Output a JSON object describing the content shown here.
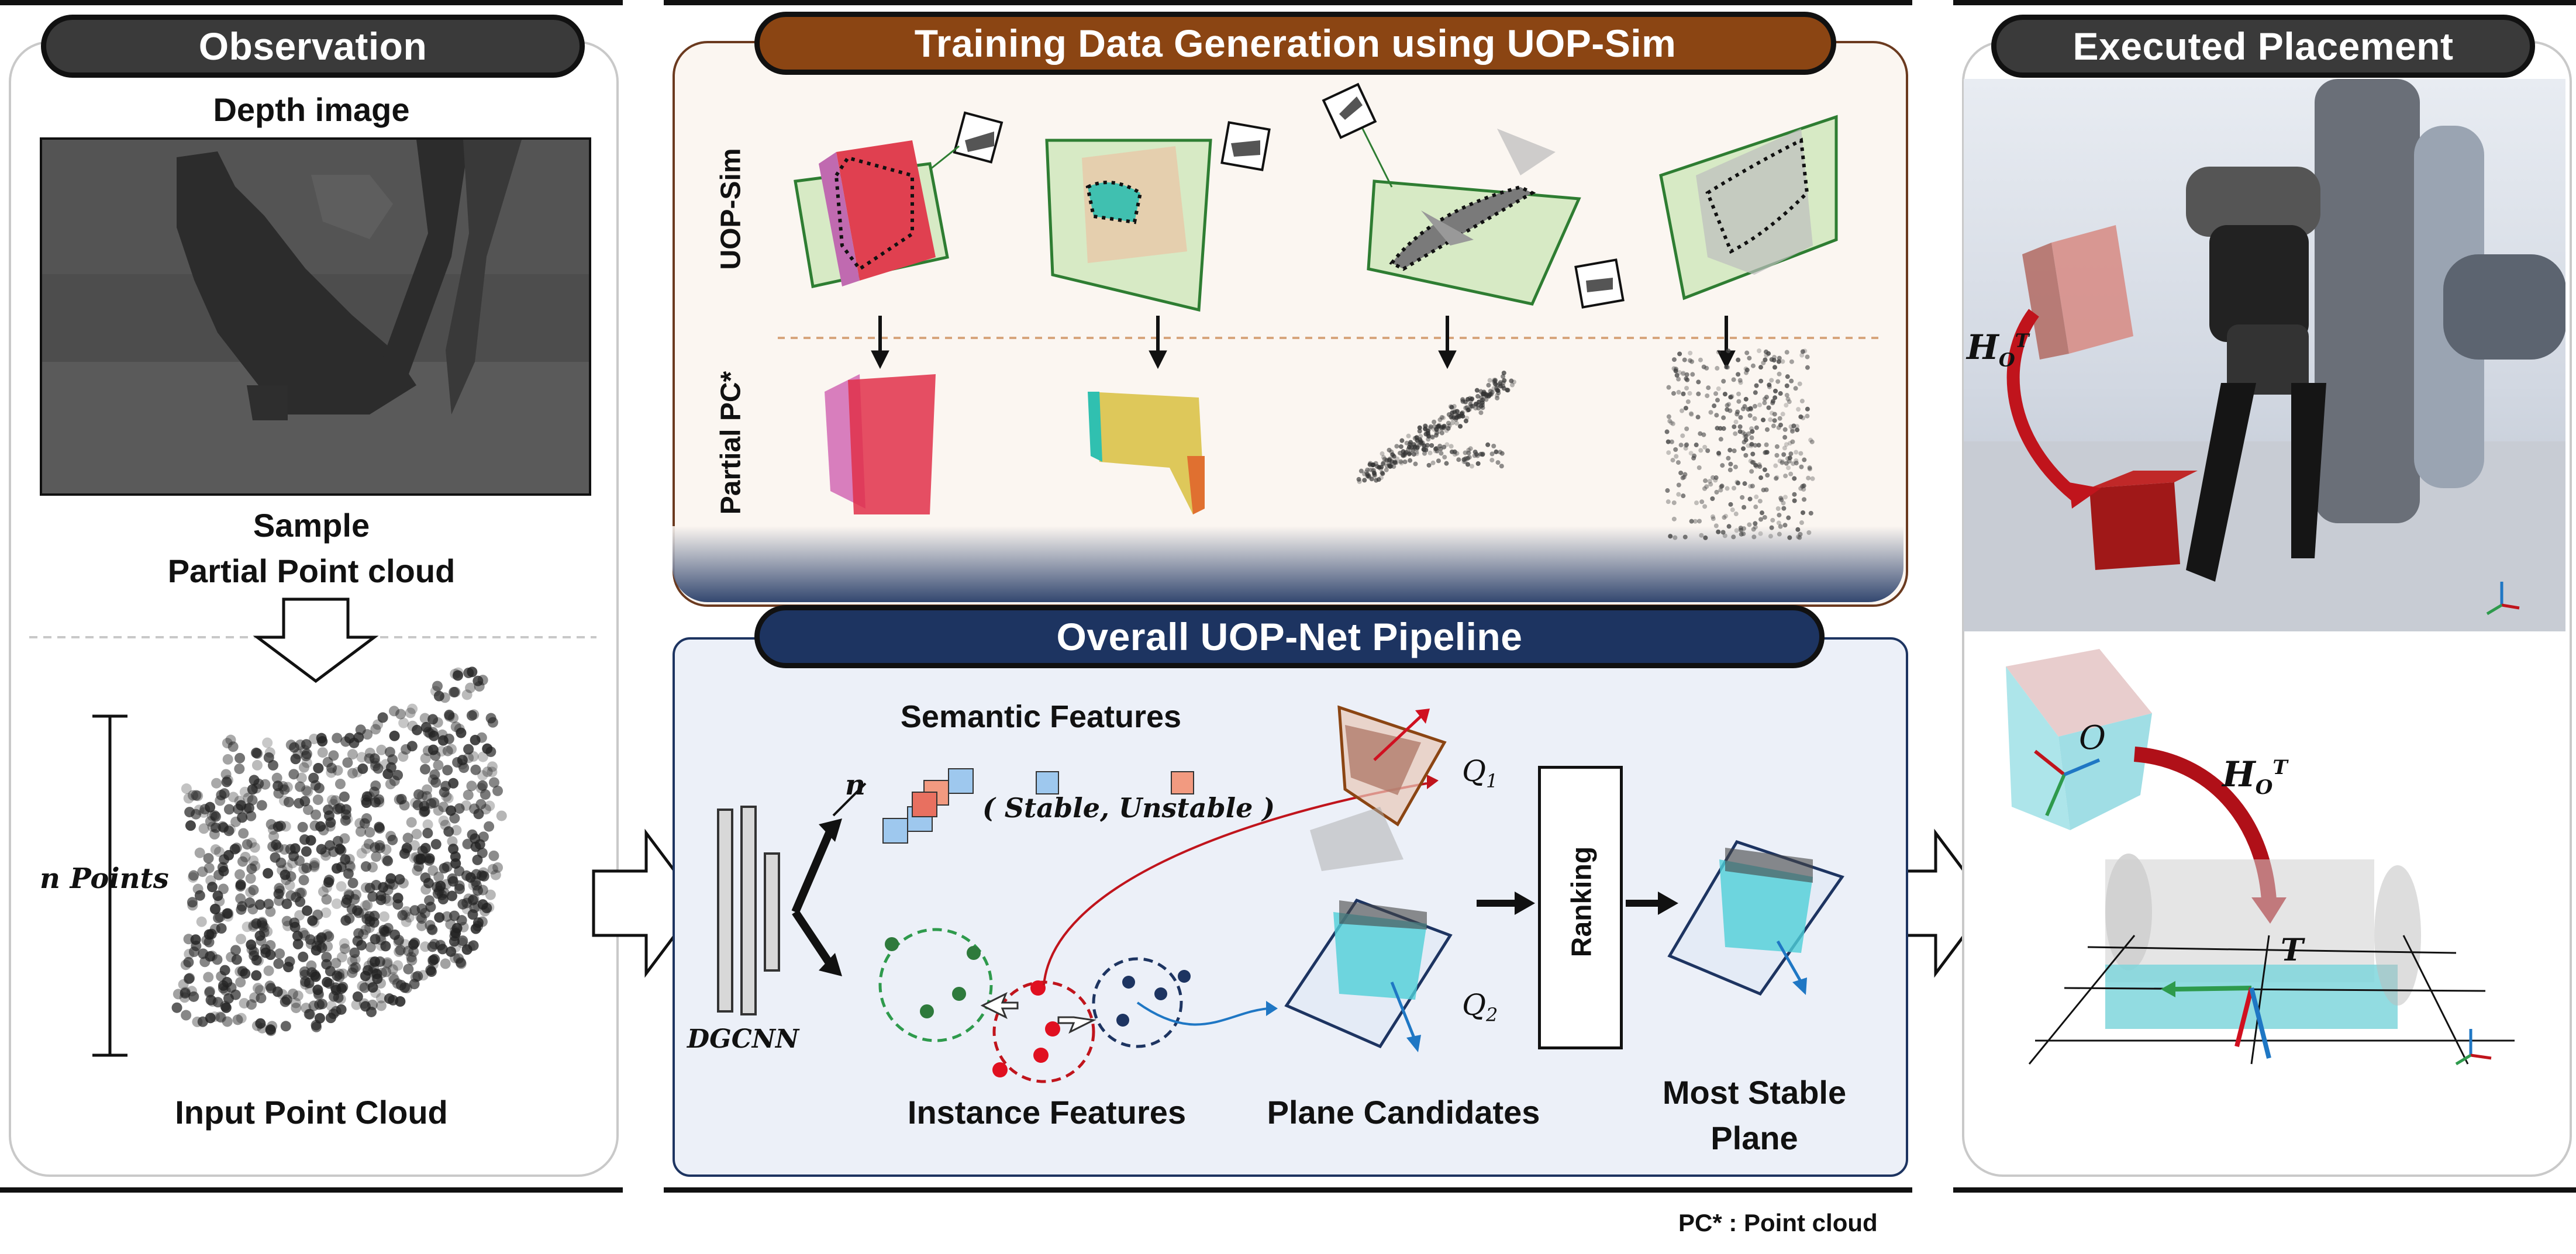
{
  "observation": {
    "title": "Observation",
    "depth_label": "Depth image",
    "sample_label_1": "Sample",
    "sample_label_2": "Partial Point cloud",
    "n_points": "n Points",
    "input_label": "Input Point Cloud"
  },
  "training": {
    "title": "Training Data Generation using UOP-Sim",
    "row1_label": "UOP-Sim",
    "row2_label": "Partial PC*"
  },
  "pipeline": {
    "title": "Overall UOP-Net Pipeline",
    "semantic_label": "Semantic Features",
    "n_label": "n",
    "stable_unstable": "( Stable, Unstable )",
    "dgcnn": "DGCNN",
    "instance_label": "Instance Features",
    "plane_label": "Plane Candidates",
    "q1_label": "Q",
    "q1_sub": "1",
    "q2_label": "Q",
    "q2_sub": "2",
    "ranking": "Ranking",
    "most_stable_1": "Most Stable",
    "most_stable_2": "Plane"
  },
  "executed": {
    "title": "Executed Placement",
    "transform_label": "H",
    "transform_sub": "O",
    "transform_sup": "T",
    "object_label": "O",
    "target_label": "T"
  },
  "footnote": "PC* : Point cloud",
  "colors": {
    "obs_pill": "#3a3a3a",
    "train_pill": "#8b4513",
    "train_bg": "#fbf6f1",
    "pipe_pill": "#1d3461",
    "pipe_bg": "#ecf0f8",
    "exec_pill": "#3a3a3a",
    "red_arrow": "#c0141c",
    "blue_arrow": "#1f77c4",
    "cyan": "#4fd0d8",
    "pink": "#e0406a"
  }
}
